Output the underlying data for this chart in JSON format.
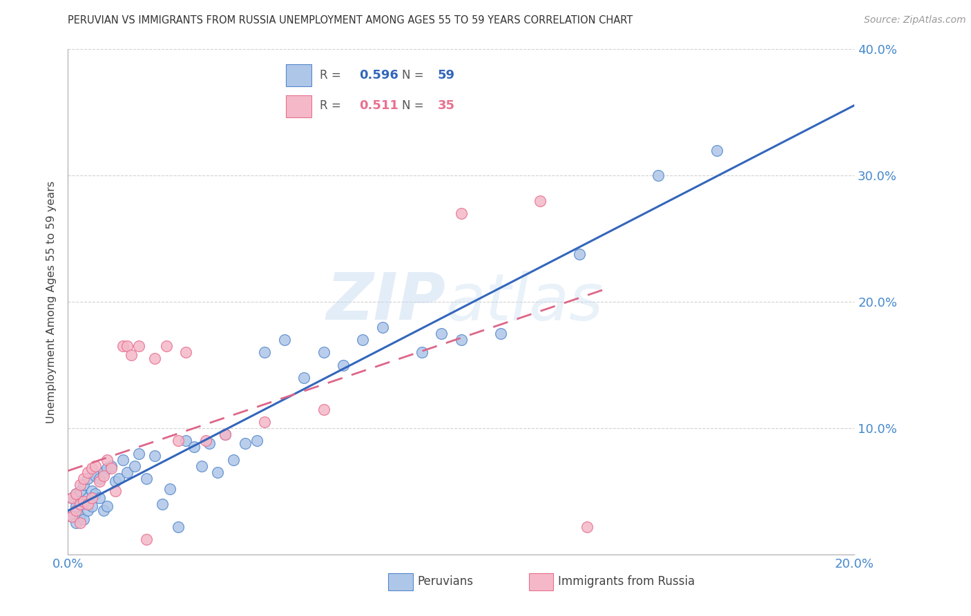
{
  "title": "PERUVIAN VS IMMIGRANTS FROM RUSSIA UNEMPLOYMENT AMONG AGES 55 TO 59 YEARS CORRELATION CHART",
  "source": "Source: ZipAtlas.com",
  "ylabel": "Unemployment Among Ages 55 to 59 years",
  "xlim": [
    0.0,
    0.2
  ],
  "ylim": [
    0.0,
    0.4
  ],
  "blue_color": "#AEC6E8",
  "pink_color": "#F4B8C8",
  "blue_edge_color": "#5588CC",
  "pink_edge_color": "#E87090",
  "blue_line_color": "#3366BB",
  "pink_line_color": "#DD6688",
  "tick_color": "#4488CC",
  "legend_R1": "0.596",
  "legend_N1": "59",
  "legend_R2": "0.511",
  "legend_N2": "35",
  "watermark": "ZIPatlas",
  "background_color": "#FFFFFF",
  "grid_color": "#CCCCCC",
  "peru_x": [
    0.001,
    0.001,
    0.002,
    0.002,
    0.002,
    0.003,
    0.003,
    0.003,
    0.004,
    0.004,
    0.004,
    0.005,
    0.005,
    0.005,
    0.006,
    0.006,
    0.007,
    0.007,
    0.008,
    0.008,
    0.009,
    0.009,
    0.01,
    0.01,
    0.011,
    0.012,
    0.013,
    0.014,
    0.015,
    0.017,
    0.018,
    0.02,
    0.022,
    0.024,
    0.026,
    0.028,
    0.03,
    0.032,
    0.034,
    0.036,
    0.038,
    0.04,
    0.042,
    0.045,
    0.048,
    0.05,
    0.055,
    0.06,
    0.065,
    0.07,
    0.075,
    0.08,
    0.09,
    0.095,
    0.1,
    0.11,
    0.13,
    0.15,
    0.165
  ],
  "peru_y": [
    0.045,
    0.03,
    0.048,
    0.038,
    0.025,
    0.05,
    0.042,
    0.03,
    0.055,
    0.04,
    0.028,
    0.06,
    0.045,
    0.035,
    0.05,
    0.038,
    0.062,
    0.048,
    0.06,
    0.045,
    0.065,
    0.035,
    0.068,
    0.038,
    0.07,
    0.058,
    0.06,
    0.075,
    0.065,
    0.07,
    0.08,
    0.06,
    0.078,
    0.04,
    0.052,
    0.022,
    0.09,
    0.085,
    0.07,
    0.088,
    0.065,
    0.095,
    0.075,
    0.088,
    0.09,
    0.16,
    0.17,
    0.14,
    0.16,
    0.15,
    0.17,
    0.18,
    0.16,
    0.175,
    0.17,
    0.175,
    0.238,
    0.3,
    0.32
  ],
  "russ_x": [
    0.001,
    0.001,
    0.002,
    0.002,
    0.003,
    0.003,
    0.003,
    0.004,
    0.004,
    0.005,
    0.005,
    0.006,
    0.006,
    0.007,
    0.008,
    0.009,
    0.01,
    0.011,
    0.012,
    0.014,
    0.015,
    0.016,
    0.018,
    0.02,
    0.022,
    0.025,
    0.028,
    0.03,
    0.035,
    0.04,
    0.05,
    0.065,
    0.1,
    0.12,
    0.132
  ],
  "russ_y": [
    0.045,
    0.03,
    0.048,
    0.035,
    0.055,
    0.04,
    0.025,
    0.06,
    0.042,
    0.065,
    0.04,
    0.068,
    0.045,
    0.07,
    0.058,
    0.062,
    0.075,
    0.068,
    0.05,
    0.165,
    0.165,
    0.158,
    0.165,
    0.012,
    0.155,
    0.165,
    0.09,
    0.16,
    0.09,
    0.095,
    0.105,
    0.115,
    0.27,
    0.28,
    0.022
  ]
}
